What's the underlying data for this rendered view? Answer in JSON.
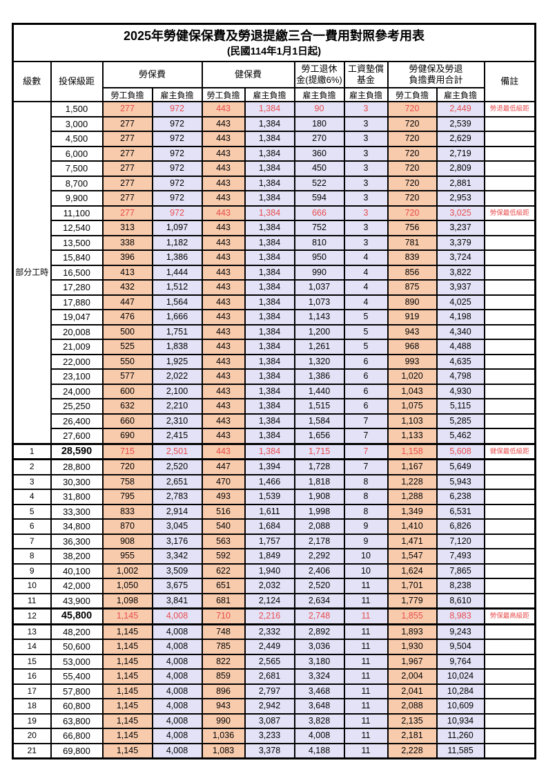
{
  "title": "2025年勞健保保費及勞退提繳三合一費用對照參考用表",
  "subtitle": "(民國114年1月1日起)",
  "header": {
    "level": "級數",
    "bracket": "投保級距",
    "labor": "勞保費",
    "health": "健保費",
    "pension_line1": "勞工退休",
    "pension_line2": "金(提繳6%)",
    "wage_line1": "工資墊償",
    "wage_line2": "基金",
    "total_line1": "勞健保及勞退",
    "total_line2": "負擔費用合計",
    "note": "備註",
    "emp": "勞工負擔",
    "er": "雇主負擔"
  },
  "part_time_label": "部分工時",
  "colors": {
    "employee_bg": "#F8CBAD",
    "employer_bg": "#E3E2F6",
    "highlight_text": "#E84C4C"
  },
  "rows": [
    {
      "level": null,
      "bracket": "1,500",
      "labor_emp": "277",
      "labor_er": "972",
      "health_emp": "443",
      "health_er": "1,384",
      "pension_er": "90",
      "wage_er": "3",
      "total_emp": "720",
      "total_er": "2,449",
      "note": "勞退最低級距",
      "highlight": true,
      "key": false
    },
    {
      "level": null,
      "bracket": "3,000",
      "labor_emp": "277",
      "labor_er": "972",
      "health_emp": "443",
      "health_er": "1,384",
      "pension_er": "180",
      "wage_er": "3",
      "total_emp": "720",
      "total_er": "2,539",
      "note": "",
      "highlight": false,
      "key": false
    },
    {
      "level": null,
      "bracket": "4,500",
      "labor_emp": "277",
      "labor_er": "972",
      "health_emp": "443",
      "health_er": "1,384",
      "pension_er": "270",
      "wage_er": "3",
      "total_emp": "720",
      "total_er": "2,629",
      "note": "",
      "highlight": false,
      "key": false
    },
    {
      "level": null,
      "bracket": "6,000",
      "labor_emp": "277",
      "labor_er": "972",
      "health_emp": "443",
      "health_er": "1,384",
      "pension_er": "360",
      "wage_er": "3",
      "total_emp": "720",
      "total_er": "2,719",
      "note": "",
      "highlight": false,
      "key": false
    },
    {
      "level": null,
      "bracket": "7,500",
      "labor_emp": "277",
      "labor_er": "972",
      "health_emp": "443",
      "health_er": "1,384",
      "pension_er": "450",
      "wage_er": "3",
      "total_emp": "720",
      "total_er": "2,809",
      "note": "",
      "highlight": false,
      "key": false
    },
    {
      "level": null,
      "bracket": "8,700",
      "labor_emp": "277",
      "labor_er": "972",
      "health_emp": "443",
      "health_er": "1,384",
      "pension_er": "522",
      "wage_er": "3",
      "total_emp": "720",
      "total_er": "2,881",
      "note": "",
      "highlight": false,
      "key": false
    },
    {
      "level": null,
      "bracket": "9,900",
      "labor_emp": "277",
      "labor_er": "972",
      "health_emp": "443",
      "health_er": "1,384",
      "pension_er": "594",
      "wage_er": "3",
      "total_emp": "720",
      "total_er": "2,953",
      "note": "",
      "highlight": false,
      "key": false
    },
    {
      "level": null,
      "bracket": "11,100",
      "labor_emp": "277",
      "labor_er": "972",
      "health_emp": "443",
      "health_er": "1,384",
      "pension_er": "666",
      "wage_er": "3",
      "total_emp": "720",
      "total_er": "3,025",
      "note": "勞保最低級距",
      "highlight": true,
      "key": false
    },
    {
      "level": null,
      "bracket": "12,540",
      "labor_emp": "313",
      "labor_er": "1,097",
      "health_emp": "443",
      "health_er": "1,384",
      "pension_er": "752",
      "wage_er": "3",
      "total_emp": "756",
      "total_er": "3,237",
      "note": "",
      "highlight": false,
      "key": false
    },
    {
      "level": null,
      "bracket": "13,500",
      "labor_emp": "338",
      "labor_er": "1,182",
      "health_emp": "443",
      "health_er": "1,384",
      "pension_er": "810",
      "wage_er": "3",
      "total_emp": "781",
      "total_er": "3,379",
      "note": "",
      "highlight": false,
      "key": false
    },
    {
      "level": null,
      "bracket": "15,840",
      "labor_emp": "396",
      "labor_er": "1,386",
      "health_emp": "443",
      "health_er": "1,384",
      "pension_er": "950",
      "wage_er": "4",
      "total_emp": "839",
      "total_er": "3,724",
      "note": "",
      "highlight": false,
      "key": false
    },
    {
      "level": null,
      "bracket": "16,500",
      "labor_emp": "413",
      "labor_er": "1,444",
      "health_emp": "443",
      "health_er": "1,384",
      "pension_er": "990",
      "wage_er": "4",
      "total_emp": "856",
      "total_er": "3,822",
      "note": "",
      "highlight": false,
      "key": false
    },
    {
      "level": null,
      "bracket": "17,280",
      "labor_emp": "432",
      "labor_er": "1,512",
      "health_emp": "443",
      "health_er": "1,384",
      "pension_er": "1,037",
      "wage_er": "4",
      "total_emp": "875",
      "total_er": "3,937",
      "note": "",
      "highlight": false,
      "key": false
    },
    {
      "level": null,
      "bracket": "17,880",
      "labor_emp": "447",
      "labor_er": "1,564",
      "health_emp": "443",
      "health_er": "1,384",
      "pension_er": "1,073",
      "wage_er": "4",
      "total_emp": "890",
      "total_er": "4,025",
      "note": "",
      "highlight": false,
      "key": false
    },
    {
      "level": null,
      "bracket": "19,047",
      "labor_emp": "476",
      "labor_er": "1,666",
      "health_emp": "443",
      "health_er": "1,384",
      "pension_er": "1,143",
      "wage_er": "5",
      "total_emp": "919",
      "total_er": "4,198",
      "note": "",
      "highlight": false,
      "key": false
    },
    {
      "level": null,
      "bracket": "20,008",
      "labor_emp": "500",
      "labor_er": "1,751",
      "health_emp": "443",
      "health_er": "1,384",
      "pension_er": "1,200",
      "wage_er": "5",
      "total_emp": "943",
      "total_er": "4,340",
      "note": "",
      "highlight": false,
      "key": false
    },
    {
      "level": null,
      "bracket": "21,009",
      "labor_emp": "525",
      "labor_er": "1,838",
      "health_emp": "443",
      "health_er": "1,384",
      "pension_er": "1,261",
      "wage_er": "5",
      "total_emp": "968",
      "total_er": "4,488",
      "note": "",
      "highlight": false,
      "key": false
    },
    {
      "level": null,
      "bracket": "22,000",
      "labor_emp": "550",
      "labor_er": "1,925",
      "health_emp": "443",
      "health_er": "1,384",
      "pension_er": "1,320",
      "wage_er": "6",
      "total_emp": "993",
      "total_er": "4,635",
      "note": "",
      "highlight": false,
      "key": false
    },
    {
      "level": null,
      "bracket": "23,100",
      "labor_emp": "577",
      "labor_er": "2,022",
      "health_emp": "443",
      "health_er": "1,384",
      "pension_er": "1,386",
      "wage_er": "6",
      "total_emp": "1,020",
      "total_er": "4,798",
      "note": "",
      "highlight": false,
      "key": false
    },
    {
      "level": null,
      "bracket": "24,000",
      "labor_emp": "600",
      "labor_er": "2,100",
      "health_emp": "443",
      "health_er": "1,384",
      "pension_er": "1,440",
      "wage_er": "6",
      "total_emp": "1,043",
      "total_er": "4,930",
      "note": "",
      "highlight": false,
      "key": false
    },
    {
      "level": null,
      "bracket": "25,250",
      "labor_emp": "632",
      "labor_er": "2,210",
      "health_emp": "443",
      "health_er": "1,384",
      "pension_er": "1,515",
      "wage_er": "6",
      "total_emp": "1,075",
      "total_er": "5,115",
      "note": "",
      "highlight": false,
      "key": false
    },
    {
      "level": null,
      "bracket": "26,400",
      "labor_emp": "660",
      "labor_er": "2,310",
      "health_emp": "443",
      "health_er": "1,384",
      "pension_er": "1,584",
      "wage_er": "7",
      "total_emp": "1,103",
      "total_er": "5,285",
      "note": "",
      "highlight": false,
      "key": false
    },
    {
      "level": null,
      "bracket": "27,600",
      "labor_emp": "690",
      "labor_er": "2,415",
      "health_emp": "443",
      "health_er": "1,384",
      "pension_er": "1,656",
      "wage_er": "7",
      "total_emp": "1,133",
      "total_er": "5,462",
      "note": "",
      "highlight": false,
      "key": false
    },
    {
      "level": "1",
      "bracket": "28,590",
      "labor_emp": "715",
      "labor_er": "2,501",
      "health_emp": "443",
      "health_er": "1,384",
      "pension_er": "1,715",
      "wage_er": "7",
      "total_emp": "1,158",
      "total_er": "5,608",
      "note": "健保最低級距",
      "highlight": true,
      "key": true
    },
    {
      "level": "2",
      "bracket": "28,800",
      "labor_emp": "720",
      "labor_er": "2,520",
      "health_emp": "447",
      "health_er": "1,394",
      "pension_er": "1,728",
      "wage_er": "7",
      "total_emp": "1,167",
      "total_er": "5,649",
      "note": "",
      "highlight": false,
      "key": false
    },
    {
      "level": "3",
      "bracket": "30,300",
      "labor_emp": "758",
      "labor_er": "2,651",
      "health_emp": "470",
      "health_er": "1,466",
      "pension_er": "1,818",
      "wage_er": "8",
      "total_emp": "1,228",
      "total_er": "5,943",
      "note": "",
      "highlight": false,
      "key": false
    },
    {
      "level": "4",
      "bracket": "31,800",
      "labor_emp": "795",
      "labor_er": "2,783",
      "health_emp": "493",
      "health_er": "1,539",
      "pension_er": "1,908",
      "wage_er": "8",
      "total_emp": "1,288",
      "total_er": "6,238",
      "note": "",
      "highlight": false,
      "key": false
    },
    {
      "level": "5",
      "bracket": "33,300",
      "labor_emp": "833",
      "labor_er": "2,914",
      "health_emp": "516",
      "health_er": "1,611",
      "pension_er": "1,998",
      "wage_er": "8",
      "total_emp": "1,349",
      "total_er": "6,531",
      "note": "",
      "highlight": false,
      "key": false
    },
    {
      "level": "6",
      "bracket": "34,800",
      "labor_emp": "870",
      "labor_er": "3,045",
      "health_emp": "540",
      "health_er": "1,684",
      "pension_er": "2,088",
      "wage_er": "9",
      "total_emp": "1,410",
      "total_er": "6,826",
      "note": "",
      "highlight": false,
      "key": false
    },
    {
      "level": "7",
      "bracket": "36,300",
      "labor_emp": "908",
      "labor_er": "3,176",
      "health_emp": "563",
      "health_er": "1,757",
      "pension_er": "2,178",
      "wage_er": "9",
      "total_emp": "1,471",
      "total_er": "7,120",
      "note": "",
      "highlight": false,
      "key": false
    },
    {
      "level": "8",
      "bracket": "38,200",
      "labor_emp": "955",
      "labor_er": "3,342",
      "health_emp": "592",
      "health_er": "1,849",
      "pension_er": "2,292",
      "wage_er": "10",
      "total_emp": "1,547",
      "total_er": "7,493",
      "note": "",
      "highlight": false,
      "key": false
    },
    {
      "level": "9",
      "bracket": "40,100",
      "labor_emp": "1,002",
      "labor_er": "3,509",
      "health_emp": "622",
      "health_er": "1,940",
      "pension_er": "2,406",
      "wage_er": "10",
      "total_emp": "1,624",
      "total_er": "7,865",
      "note": "",
      "highlight": false,
      "key": false
    },
    {
      "level": "10",
      "bracket": "42,000",
      "labor_emp": "1,050",
      "labor_er": "3,675",
      "health_emp": "651",
      "health_er": "2,032",
      "pension_er": "2,520",
      "wage_er": "11",
      "total_emp": "1,701",
      "total_er": "8,238",
      "note": "",
      "highlight": false,
      "key": false
    },
    {
      "level": "11",
      "bracket": "43,900",
      "labor_emp": "1,098",
      "labor_er": "3,841",
      "health_emp": "681",
      "health_er": "2,124",
      "pension_er": "2,634",
      "wage_er": "11",
      "total_emp": "1,779",
      "total_er": "8,610",
      "note": "",
      "highlight": false,
      "key": false
    },
    {
      "level": "12",
      "bracket": "45,800",
      "labor_emp": "1,145",
      "labor_er": "4,008",
      "health_emp": "710",
      "health_er": "2,216",
      "pension_er": "2,748",
      "wage_er": "11",
      "total_emp": "1,855",
      "total_er": "8,983",
      "note": "勞保最高級距",
      "highlight": true,
      "key": true
    },
    {
      "level": "13",
      "bracket": "48,200",
      "labor_emp": "1,145",
      "labor_er": "4,008",
      "health_emp": "748",
      "health_er": "2,332",
      "pension_er": "2,892",
      "wage_er": "11",
      "total_emp": "1,893",
      "total_er": "9,243",
      "note": "",
      "highlight": false,
      "key": false
    },
    {
      "level": "14",
      "bracket": "50,600",
      "labor_emp": "1,145",
      "labor_er": "4,008",
      "health_emp": "785",
      "health_er": "2,449",
      "pension_er": "3,036",
      "wage_er": "11",
      "total_emp": "1,930",
      "total_er": "9,504",
      "note": "",
      "highlight": false,
      "key": false
    },
    {
      "level": "15",
      "bracket": "53,000",
      "labor_emp": "1,145",
      "labor_er": "4,008",
      "health_emp": "822",
      "health_er": "2,565",
      "pension_er": "3,180",
      "wage_er": "11",
      "total_emp": "1,967",
      "total_er": "9,764",
      "note": "",
      "highlight": false,
      "key": false
    },
    {
      "level": "16",
      "bracket": "55,400",
      "labor_emp": "1,145",
      "labor_er": "4,008",
      "health_emp": "859",
      "health_er": "2,681",
      "pension_er": "3,324",
      "wage_er": "11",
      "total_emp": "2,004",
      "total_er": "10,024",
      "note": "",
      "highlight": false,
      "key": false
    },
    {
      "level": "17",
      "bracket": "57,800",
      "labor_emp": "1,145",
      "labor_er": "4,008",
      "health_emp": "896",
      "health_er": "2,797",
      "pension_er": "3,468",
      "wage_er": "11",
      "total_emp": "2,041",
      "total_er": "10,284",
      "note": "",
      "highlight": false,
      "key": false
    },
    {
      "level": "18",
      "bracket": "60,800",
      "labor_emp": "1,145",
      "labor_er": "4,008",
      "health_emp": "943",
      "health_er": "2,942",
      "pension_er": "3,648",
      "wage_er": "11",
      "total_emp": "2,088",
      "total_er": "10,609",
      "note": "",
      "highlight": false,
      "key": false
    },
    {
      "level": "19",
      "bracket": "63,800",
      "labor_emp": "1,145",
      "labor_er": "4,008",
      "health_emp": "990",
      "health_er": "3,087",
      "pension_er": "3,828",
      "wage_er": "11",
      "total_emp": "2,135",
      "total_er": "10,934",
      "note": "",
      "highlight": false,
      "key": false
    },
    {
      "level": "20",
      "bracket": "66,800",
      "labor_emp": "1,145",
      "labor_er": "4,008",
      "health_emp": "1,036",
      "health_er": "3,233",
      "pension_er": "4,008",
      "wage_er": "11",
      "total_emp": "2,181",
      "total_er": "11,260",
      "note": "",
      "highlight": false,
      "key": false
    },
    {
      "level": "21",
      "bracket": "69,800",
      "labor_emp": "1,145",
      "labor_er": "4,008",
      "health_emp": "1,083",
      "health_er": "3,378",
      "pension_er": "4,188",
      "wage_er": "11",
      "total_emp": "2,228",
      "total_er": "11,585",
      "note": "",
      "highlight": false,
      "key": false
    }
  ]
}
